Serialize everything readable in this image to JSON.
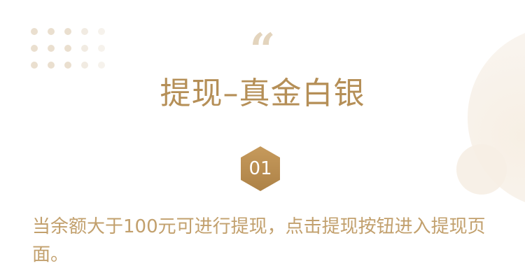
{
  "header": {
    "quote_glyph": "“",
    "title": "提现–真金白银"
  },
  "step": {
    "number": "01"
  },
  "content": {
    "description": "当余额大于100元可进行提现，点击提现按钮进入提现页面。"
  },
  "colors": {
    "accent_gold": "#b58f57",
    "text_gold": "#c2a06d",
    "badge_top": "#c69a5c",
    "badge_bottom": "#ad8247",
    "quote_color": "#e3d4bd",
    "dot_color": "#eadfcf"
  },
  "icons": {
    "quote": "quote-mark-icon",
    "badge": "hexagon-badge-icon",
    "pattern": "dot-pattern-icon"
  }
}
